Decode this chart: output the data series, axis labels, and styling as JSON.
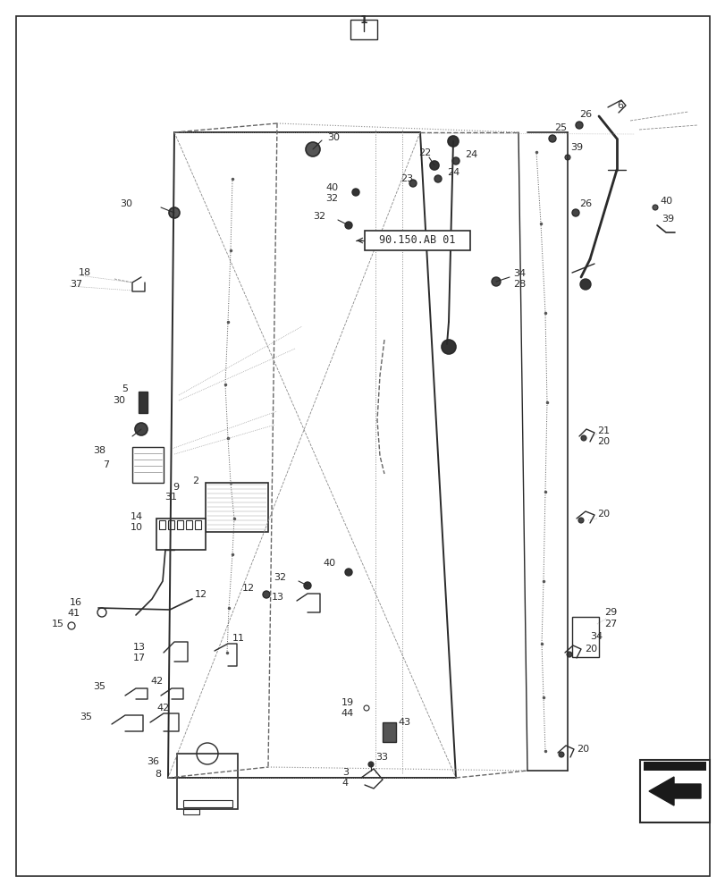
{
  "background_color": "#ffffff",
  "border_color": "#333333",
  "label_box_text": "90.150.AB 01",
  "page_number": "1",
  "fig_width": 8.12,
  "fig_height": 10.0,
  "dpi": 100,
  "lc": "#2a2a2a",
  "lw": 1.0
}
